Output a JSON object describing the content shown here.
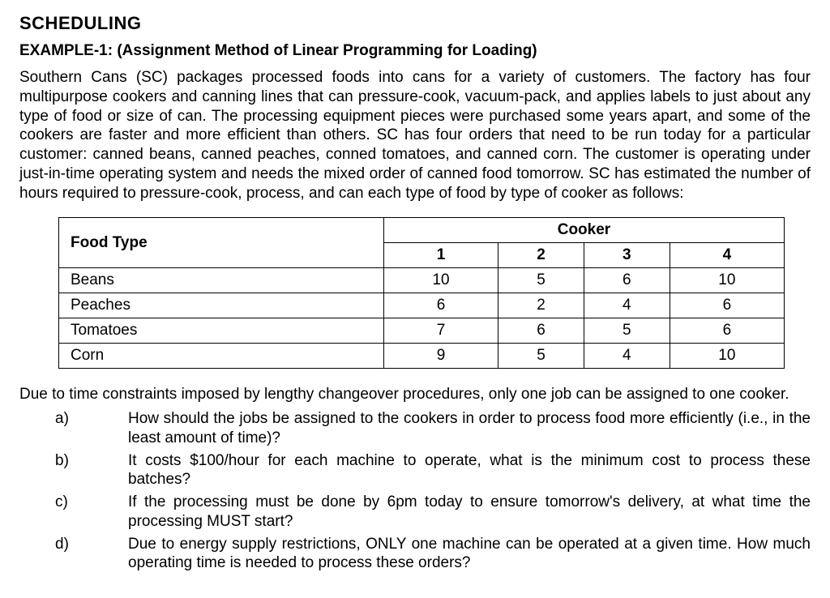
{
  "heading": "SCHEDULING",
  "example_label": "EXAMPLE-1: (Assignment Method of Linear Programming for Loading)",
  "paragraph": "Southern Cans (SC) packages processed foods into cans for a variety of customers. The factory has four multipurpose cookers and canning lines that can pressure-cook, vacuum-pack, and applies labels to just about any type of food or size of can. The processing equipment pieces were purchased some years apart, and some of the cookers are faster and more efficient than others. SC has four orders that need to be run today for a particular customer: canned beans, canned peaches, conned tomatoes, and canned corn. The customer is operating under just-in-time operating system and needs the mixed order of canned food tomorrow. SC has estimated the number of hours required to pressure-cook, process, and can each type of food by type of cooker as follows:",
  "table": {
    "row_header_label": "Food Type",
    "col_group_label": "Cooker",
    "columns": [
      "1",
      "2",
      "3",
      "4"
    ],
    "rows": [
      {
        "label": "Beans",
        "values": [
          "10",
          "5",
          "6",
          "10"
        ]
      },
      {
        "label": "Peaches",
        "values": [
          "6",
          "2",
          "4",
          "6"
        ]
      },
      {
        "label": "Tomatoes",
        "values": [
          "7",
          "6",
          "5",
          "6"
        ]
      },
      {
        "label": "Corn",
        "values": [
          "9",
          "5",
          "4",
          "10"
        ]
      }
    ]
  },
  "constraint_text": "Due to time constraints imposed by lengthy changeover procedures, only one job can be assigned to one cooker.",
  "questions": [
    {
      "label": "a)",
      "text": "How should the jobs be assigned to the cookers in order to process food more efficiently (i.e., in the least amount of time)?"
    },
    {
      "label": "b)",
      "text": "It costs $100/hour for each machine to operate, what is the minimum cost to process these batches?"
    },
    {
      "label": "c)",
      "text": "If the processing must be done by 6pm today to ensure tomorrow's delivery, at what time the processing MUST start?"
    },
    {
      "label": "d)",
      "text": "Due to energy supply restrictions, ONLY one machine can be operated at a given time. How much operating time is needed to process these orders?"
    }
  ]
}
